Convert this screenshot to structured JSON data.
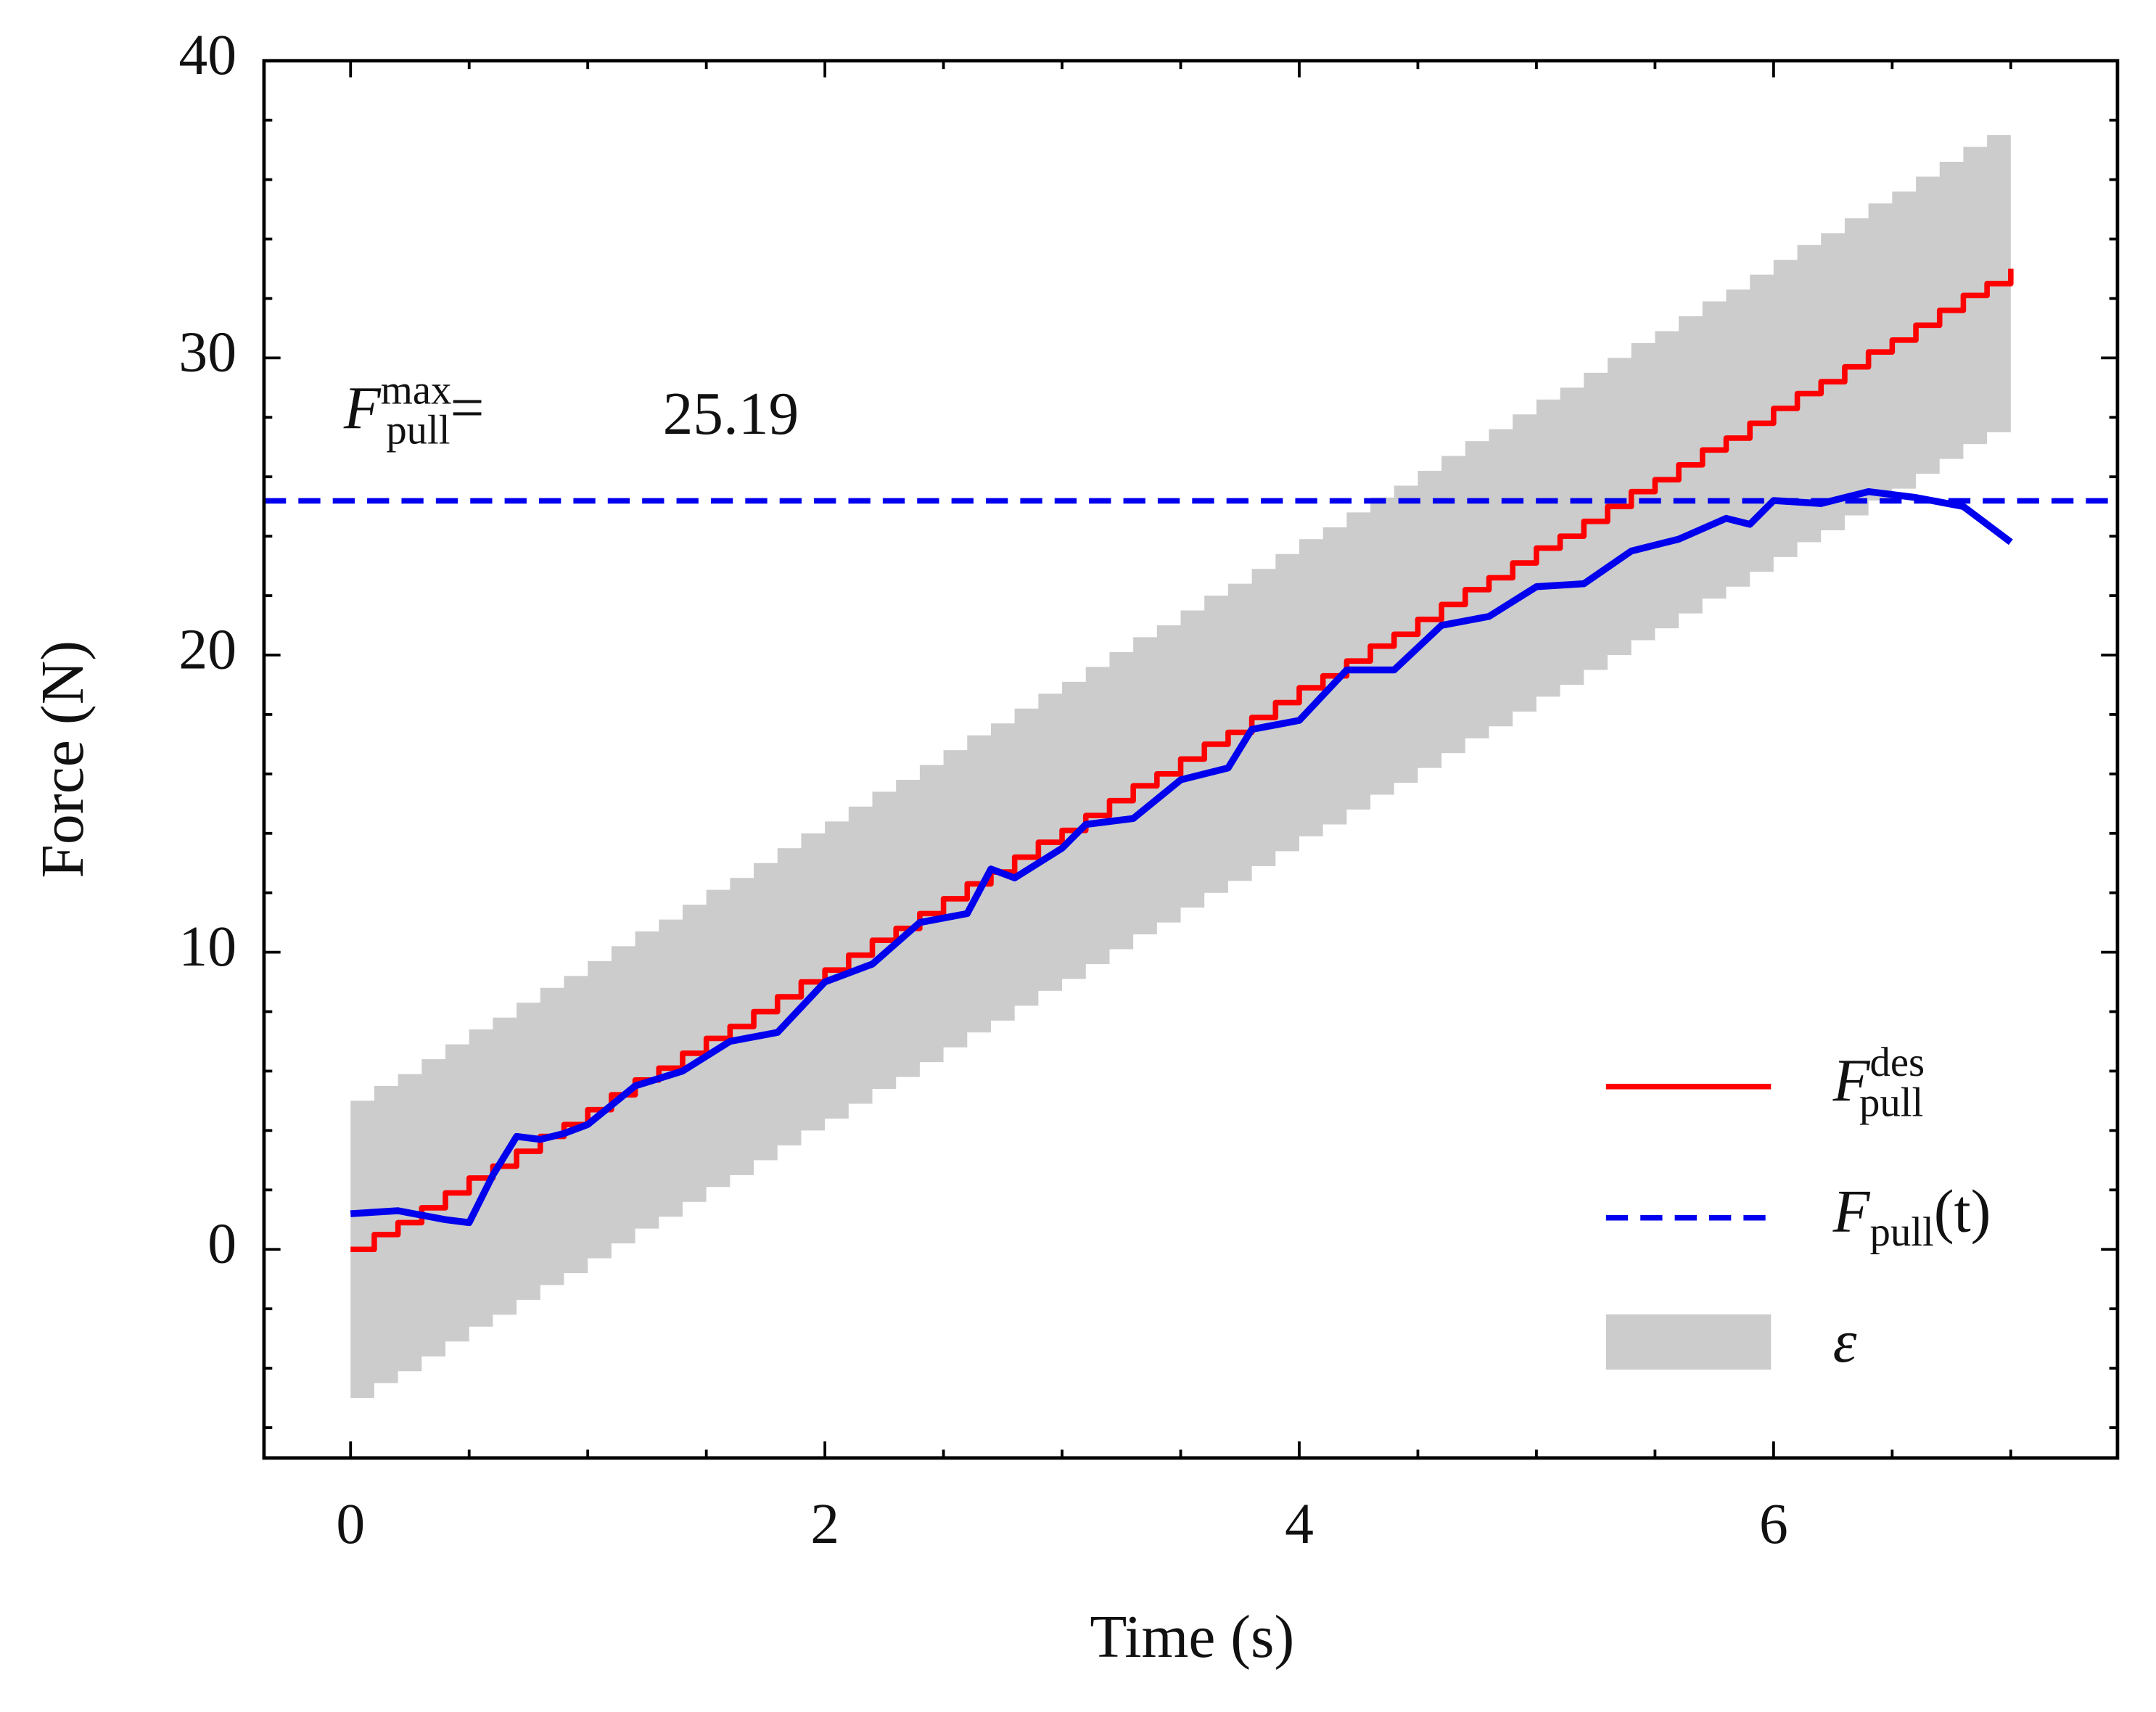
{
  "chart_data": {
    "type": "line",
    "xlabel": "Time (s)",
    "ylabel": "Force (N)",
    "xlim": [
      -0.365,
      7.45
    ],
    "ylim": [
      -7.02,
      40
    ],
    "xticks": [
      0,
      2,
      4,
      6
    ],
    "yticks": [
      0,
      10,
      20,
      30,
      40
    ],
    "xminorticks": [
      0.5,
      1,
      1.5,
      2.5,
      3,
      3.5,
      4.5,
      5,
      5.5,
      6.5,
      7
    ],
    "yminorticks": [
      -6,
      -4,
      -2,
      2,
      4,
      6,
      8,
      12,
      14,
      16,
      18,
      22,
      24,
      26,
      28,
      32,
      34,
      36,
      38
    ],
    "legend_position": "lower right",
    "error": 5,
    "band": {
      "label": {
        "base": "ε"
      },
      "color": "#cccccc"
    },
    "series": [
      {
        "label": {
          "base": "F",
          "sub": "pull",
          "sup": "des"
        },
        "color": "#ff0000",
        "drawstyle": "steps-post",
        "x": [
          0,
          0.1,
          0.2,
          0.3,
          0.4,
          0.5,
          0.6,
          0.7,
          0.8,
          0.9,
          1,
          1.1,
          1.2,
          1.3,
          1.4,
          1.5,
          1.6,
          1.7,
          1.8,
          1.9,
          2,
          2.1,
          2.2,
          2.3,
          2.4,
          2.5,
          2.6,
          2.7,
          2.8,
          2.9,
          3,
          3.1,
          3.2,
          3.3,
          3.4,
          3.5,
          3.6,
          3.7,
          3.8,
          3.9,
          4,
          4.1,
          4.2,
          4.3,
          4.4,
          4.5,
          4.6,
          4.7,
          4.8,
          4.9,
          5,
          5.1,
          5.2,
          5.3,
          5.4,
          5.5,
          5.6,
          5.7,
          5.8,
          5.9,
          6,
          6.1,
          6.2,
          6.3,
          6.4,
          6.5,
          6.6,
          6.7,
          6.8,
          6.9,
          7
        ],
        "values": [
          0,
          0.5,
          0.9,
          1.4,
          1.9,
          2.4,
          2.8,
          3.3,
          3.8,
          4.2,
          4.7,
          5.2,
          5.7,
          6.1,
          6.6,
          7.1,
          7.5,
          8.0,
          8.5,
          9.0,
          9.4,
          9.9,
          10.4,
          10.8,
          11.3,
          11.8,
          12.3,
          12.7,
          13.2,
          13.7,
          14.1,
          14.6,
          15.1,
          15.6,
          16.0,
          16.5,
          17.0,
          17.4,
          17.9,
          18.4,
          18.9,
          19.3,
          19.8,
          20.3,
          20.7,
          21.2,
          21.7,
          22.2,
          22.6,
          23.1,
          23.6,
          24.0,
          24.5,
          25.0,
          25.5,
          25.9,
          26.4,
          26.9,
          27.3,
          27.8,
          28.3,
          28.8,
          29.2,
          29.7,
          30.2,
          30.6,
          31.1,
          31.6,
          32.1,
          32.5,
          33.0
        ]
      },
      {
        "label": {
          "base": "F",
          "sub": "pull",
          "suffix": "(t)"
        },
        "color": "#0000ee",
        "linestyle": "dashed",
        "x": [
          0,
          0.2,
          0.4,
          0.5,
          0.6,
          0.7,
          0.8,
          0.9,
          1,
          1.2,
          1.4,
          1.6,
          1.8,
          2,
          2.2,
          2.4,
          2.6,
          2.7,
          2.8,
          3,
          3.1,
          3.3,
          3.5,
          3.7,
          3.8,
          4,
          4.2,
          4.4,
          4.6,
          4.8,
          5,
          5.2,
          5.4,
          5.6,
          5.8,
          5.9,
          6,
          6.2,
          6.4,
          6.6,
          6.8,
          7
        ],
        "values": [
          1.2,
          1.3,
          1.0,
          0.9,
          2.5,
          3.8,
          3.7,
          3.9,
          4.2,
          5.5,
          6.0,
          7.0,
          7.3,
          9.0,
          9.6,
          11.0,
          11.3,
          12.8,
          12.5,
          13.5,
          14.3,
          14.5,
          15.8,
          16.2,
          17.5,
          17.8,
          19.5,
          19.5,
          21.0,
          21.3,
          22.3,
          22.4,
          23.5,
          23.9,
          24.6,
          24.4,
          25.2,
          25.1,
          25.5,
          25.3,
          25.0,
          23.8
        ]
      }
    ],
    "annotation": {
      "base": "F",
      "sub": "pull",
      "sup": "max",
      "suffix": "=",
      "value": 25.19,
      "color": "#0000ee"
    }
  }
}
